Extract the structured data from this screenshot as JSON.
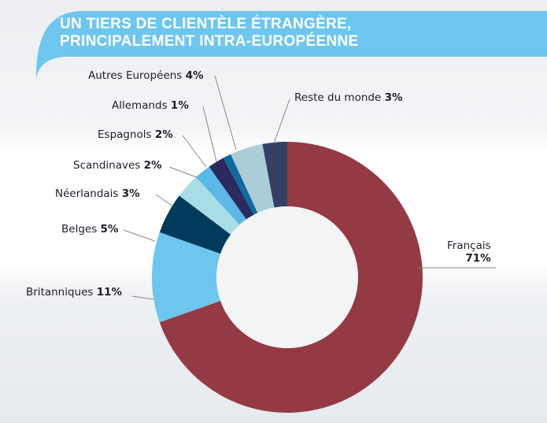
{
  "chart_data": {
    "type": "pie",
    "donut": true,
    "title": [
      "UN TIERS DE CLIENTÈLE ÉTRANGÈRE,",
      "PRINCIPALEMENT INTRA-EUROPÉENNE"
    ],
    "slices": [
      {
        "label": "Français",
        "value": 71,
        "display": "71%",
        "color": "#943a44"
      },
      {
        "label": "Britanniques",
        "value": 11,
        "display": "11%",
        "color": "#6ec6ee"
      },
      {
        "label": "Belges",
        "value": 5,
        "display": "5%",
        "color": "#003a5c"
      },
      {
        "label": "Néerlandais",
        "value": 3,
        "display": "3%",
        "color": "#a9dde5"
      },
      {
        "label": "Scandinaves",
        "value": 2,
        "display": "2%",
        "color": "#5bb8e8"
      },
      {
        "label": "Espagnols",
        "value": 2,
        "display": "2%",
        "color": "#2a2a5e"
      },
      {
        "label": "Allemands",
        "value": 1,
        "display": "1%",
        "color": "#0f6a9e"
      },
      {
        "label": "Autres Européens",
        "value": 4,
        "display": "4%",
        "color": "#abcdd8"
      },
      {
        "label": "Reste du monde",
        "value": 3,
        "display": "3%",
        "color": "#343f63"
      }
    ]
  },
  "colors": {
    "banner": "#6ec6ee",
    "hole": "#f4f4f5",
    "leader": "#888888"
  }
}
